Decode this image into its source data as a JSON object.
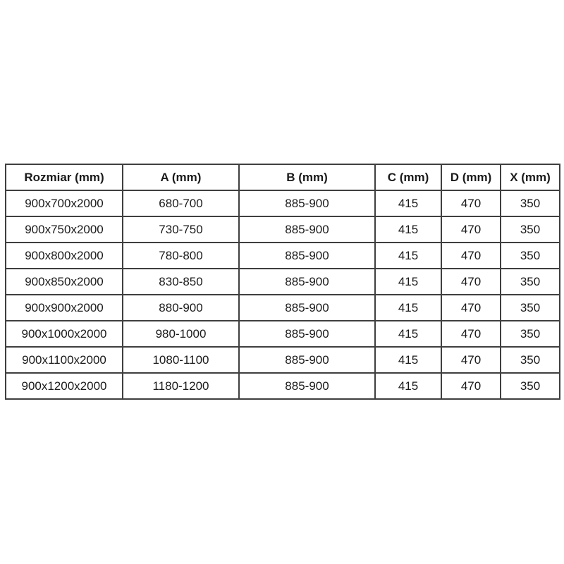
{
  "table": {
    "name": "shower-enclosure-dimensions",
    "columns": [
      {
        "id": "rozmiar",
        "label": "Rozmiar (mm)"
      },
      {
        "id": "a",
        "label": "A (mm)"
      },
      {
        "id": "b",
        "label": "B (mm)"
      },
      {
        "id": "c",
        "label": "C (mm)"
      },
      {
        "id": "d",
        "label": "D (mm)"
      },
      {
        "id": "x",
        "label": "X (mm)"
      }
    ],
    "rows": [
      [
        "900x700x2000",
        "680-700",
        "885-900",
        "415",
        "470",
        "350"
      ],
      [
        "900x750x2000",
        "730-750",
        "885-900",
        "415",
        "470",
        "350"
      ],
      [
        "900x800x2000",
        "780-800",
        "885-900",
        "415",
        "470",
        "350"
      ],
      [
        "900x850x2000",
        "830-850",
        "885-900",
        "415",
        "470",
        "350"
      ],
      [
        "900x900x2000",
        "880-900",
        "885-900",
        "415",
        "470",
        "350"
      ],
      [
        "900x1000x2000",
        "980-1000",
        "885-900",
        "415",
        "470",
        "350"
      ],
      [
        "900x1100x2000",
        "1080-1100",
        "885-900",
        "415",
        "470",
        "350"
      ],
      [
        "900x1200x2000",
        "1180-1200",
        "885-900",
        "415",
        "470",
        "350"
      ]
    ],
    "colors": {
      "border": "#3f3f3f",
      "text": "#1a1a1a",
      "background": "#ffffff"
    }
  }
}
